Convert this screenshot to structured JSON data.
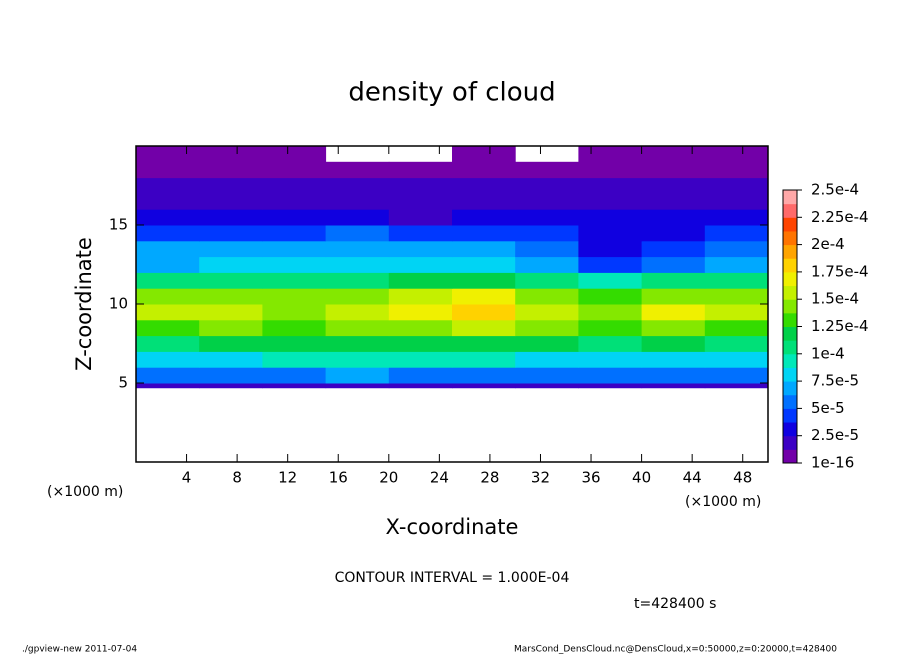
{
  "chart_data": {
    "type": "heatmap",
    "title": "density of cloud",
    "x_label": "X-coordinate",
    "y_label": "Z-coordinate",
    "x_unit_left": "(×1000 m)",
    "x_unit_right": "(×1000 m)",
    "contour_note": "CONTOUR INTERVAL = 1.000E-04",
    "time_note": "t=428400 s",
    "footer_left": "./gpview-new  2011-07-04",
    "footer_right": "MarsCond_DensCloud.nc@DensCloud,x=0:50000,z=0:20000,t=428400",
    "xlim": [
      0,
      50
    ],
    "ylim": [
      0,
      20
    ],
    "xticks": [
      4,
      8,
      12,
      16,
      20,
      24,
      28,
      32,
      36,
      40,
      44,
      48
    ],
    "yticks": [
      5,
      10,
      15
    ],
    "x": [
      0,
      5,
      10,
      15,
      20,
      25,
      30,
      35,
      40,
      45,
      50
    ],
    "z": [
      4.7,
      5,
      6,
      7,
      8,
      9,
      10,
      11,
      12,
      13,
      14,
      15,
      16,
      17,
      18,
      19,
      20
    ],
    "values": [
      [
        2e-05,
        2e-05,
        2e-05,
        2e-05,
        2e-05,
        2e-05,
        2e-05,
        1.5e-05,
        2e-05,
        2e-05
      ],
      [
        5.5e-05,
        6e-05,
        6e-05,
        6.5e-05,
        6e-05,
        6e-05,
        6e-05,
        5.5e-05,
        6e-05,
        6e-05
      ],
      [
        8.5e-05,
        8.5e-05,
        9e-05,
        9e-05,
        9e-05,
        9e-05,
        8.5e-05,
        8.5e-05,
        8.5e-05,
        8.5e-05
      ],
      [
        0.00011,
        0.000115,
        0.000115,
        0.00012,
        0.00012,
        0.00012,
        0.000115,
        0.00011,
        0.000115,
        0.00011
      ],
      [
        0.000135,
        0.00014,
        0.000135,
        0.00014,
        0.00015,
        0.000155,
        0.00014,
        0.00013,
        0.00014,
        0.000135
      ],
      [
        0.00016,
        0.000155,
        0.00015,
        0.000155,
        0.000175,
        0.000185,
        0.00016,
        0.000145,
        0.000165,
        0.000155
      ],
      [
        0.000145,
        0.00014,
        0.00014,
        0.000145,
        0.00016,
        0.000165,
        0.00015,
        0.000135,
        0.000145,
        0.00014
      ],
      [
        0.000105,
        0.000105,
        0.00011,
        0.00011,
        0.000115,
        0.000115,
        0.000105,
        0.0001,
        0.000105,
        0.000105
      ],
      [
        7.5e-05,
        8e-05,
        8e-05,
        8e-05,
        8.5e-05,
        8e-05,
        7.5e-05,
        5e-05,
        6e-05,
        7.5e-05
      ],
      [
        6.5e-05,
        6.5e-05,
        6.5e-05,
        7e-05,
        7e-05,
        6.5e-05,
        5.5e-05,
        3e-05,
        4e-05,
        6e-05
      ],
      [
        5e-05,
        5e-05,
        5e-05,
        5.5e-05,
        5e-05,
        4.5e-05,
        4e-05,
        3e-05,
        3.5e-05,
        4.5e-05
      ],
      [
        3e-05,
        3e-05,
        3e-05,
        3e-05,
        2.5e-05,
        3e-05,
        3e-05,
        3e-05,
        3e-05,
        3e-05
      ],
      [
        2.5e-05,
        2.2e-05,
        2.2e-05,
        2e-05,
        2e-05,
        2e-05,
        2e-05,
        2.2e-05,
        2.2e-05,
        2.2e-05
      ],
      [
        1.5e-05,
        1.5e-05,
        1.3e-05,
        1.5e-05,
        1.5e-05,
        1.5e-05,
        1.5e-05,
        1.5e-05,
        1.5e-05,
        1.5e-05
      ],
      [
        1e-05,
        8e-06,
        8e-06,
        8e-06,
        1e-05,
        1e-05,
        1e-05,
        8e-06,
        1e-05,
        1e-05
      ],
      [
        5e-06,
        5e-06,
        5e-06,
        null,
        null,
        5e-06,
        null,
        5e-06,
        5e-06,
        5e-06
      ]
    ],
    "colorbar_lim": [
      1e-16,
      0.00025
    ],
    "colorbar_ticks": [
      {
        "value": 1e-16,
        "label": "1e-16"
      },
      {
        "value": 2.5e-05,
        "label": "2.5e-5"
      },
      {
        "value": 5e-05,
        "label": "5e-5"
      },
      {
        "value": 7.5e-05,
        "label": "7.5e-5"
      },
      {
        "value": 0.0001,
        "label": "1e-4"
      },
      {
        "value": 0.000125,
        "label": "1.25e-4"
      },
      {
        "value": 0.00015,
        "label": "1.5e-4"
      },
      {
        "value": 0.000175,
        "label": "1.75e-4"
      },
      {
        "value": 0.0002,
        "label": "2e-4"
      },
      {
        "value": 0.000225,
        "label": "2.25e-4"
      },
      {
        "value": 0.00025,
        "label": "2.5e-4"
      }
    ],
    "colors": [
      "#7200a8",
      "#3c00c4",
      "#1000e0",
      "#0038ff",
      "#0070ff",
      "#00a8ff",
      "#00d4f4",
      "#00e8b8",
      "#00e078",
      "#00d048",
      "#34dc00",
      "#84e800",
      "#c4f000",
      "#f0f000",
      "#ffd200",
      "#ffa400",
      "#ff7400",
      "#ff4400",
      "#ff6a6a",
      "#ffa8a8"
    ]
  }
}
